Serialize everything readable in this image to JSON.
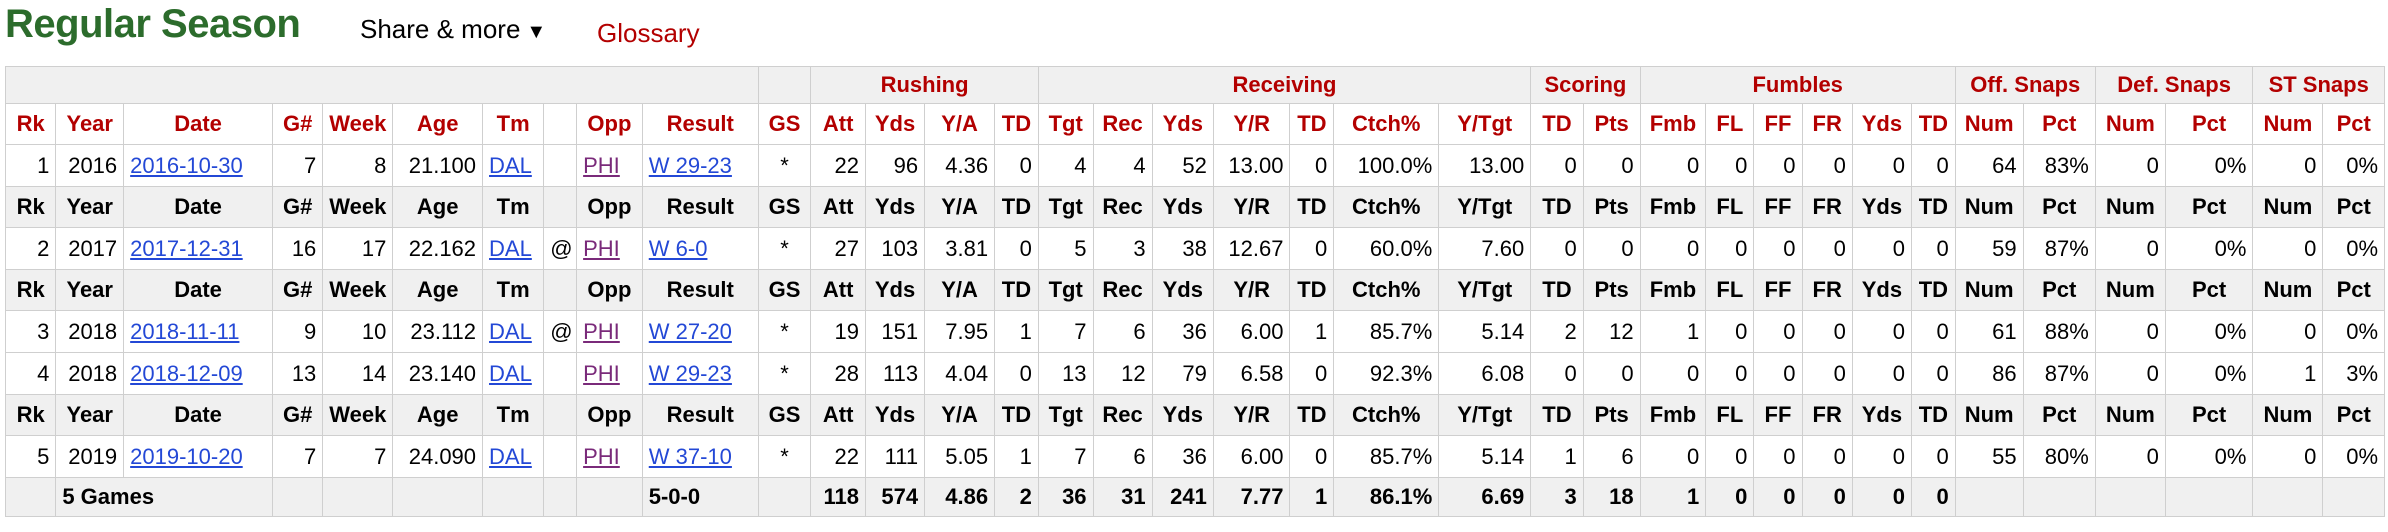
{
  "header": {
    "title": "Regular Season",
    "share_label": "Share & more",
    "share_caret": "▼",
    "glossary_label": "Glossary"
  },
  "groups": [
    "Rushing",
    "Receiving",
    "Scoring",
    "Fumbles",
    "Off. Snaps",
    "Def. Snaps",
    "ST Snaps"
  ],
  "columns": [
    "Rk",
    "Year",
    "Date",
    "G#",
    "Week",
    "Age",
    "Tm",
    "",
    "Opp",
    "Result",
    "GS",
    "Att",
    "Yds",
    "Y/A",
    "TD",
    "Tgt",
    "Rec",
    "Yds",
    "Y/R",
    "TD",
    "Ctch%",
    "Y/Tgt",
    "TD",
    "Pts",
    "Fmb",
    "FL",
    "FF",
    "FR",
    "Yds",
    "TD",
    "Num",
    "Pct",
    "Num",
    "Pct",
    "Num",
    "Pct"
  ],
  "repeat_columns": [
    "Rk",
    "Year",
    "Date",
    "G#",
    "Week",
    "Age",
    "Tm",
    "",
    "Opp",
    "Result",
    "GS",
    "Att",
    "Yds",
    "Y/A",
    "TD",
    "Tgt",
    "Rec",
    "Yds",
    "Y/R",
    "TD",
    "Ctch%",
    "Y/Tgt",
    "TD",
    "Pts",
    "Fmb",
    "FL",
    "FF",
    "FR",
    "Yds",
    "TD",
    "Num",
    "Pct",
    "Num",
    "Pct",
    "Num",
    "Pct"
  ],
  "rows": [
    {
      "type": "data",
      "cells": [
        "1",
        "2016",
        "2016-10-30",
        "7",
        "8",
        "21.100",
        "DAL",
        "",
        "PHI",
        "W 29-23",
        "*",
        "22",
        "96",
        "4.36",
        "0",
        "4",
        "4",
        "52",
        "13.00",
        "0",
        "100.0%",
        "13.00",
        "0",
        "0",
        "0",
        "0",
        "0",
        "0",
        "0",
        "0",
        "64",
        "83%",
        "0",
        "0%",
        "0",
        "0%"
      ]
    },
    {
      "type": "repeat"
    },
    {
      "type": "data",
      "cells": [
        "2",
        "2017",
        "2017-12-31",
        "16",
        "17",
        "22.162",
        "DAL",
        "@",
        "PHI",
        "W 6-0",
        "*",
        "27",
        "103",
        "3.81",
        "0",
        "5",
        "3",
        "38",
        "12.67",
        "0",
        "60.0%",
        "7.60",
        "0",
        "0",
        "0",
        "0",
        "0",
        "0",
        "0",
        "0",
        "59",
        "87%",
        "0",
        "0%",
        "0",
        "0%"
      ]
    },
    {
      "type": "repeat"
    },
    {
      "type": "data",
      "cells": [
        "3",
        "2018",
        "2018-11-11",
        "9",
        "10",
        "23.112",
        "DAL",
        "@",
        "PHI",
        "W 27-20",
        "*",
        "19",
        "151",
        "7.95",
        "1",
        "7",
        "6",
        "36",
        "6.00",
        "1",
        "85.7%",
        "5.14",
        "2",
        "12",
        "1",
        "0",
        "0",
        "0",
        "0",
        "0",
        "61",
        "88%",
        "0",
        "0%",
        "0",
        "0%"
      ]
    },
    {
      "type": "data",
      "cells": [
        "4",
        "2018",
        "2018-12-09",
        "13",
        "14",
        "23.140",
        "DAL",
        "",
        "PHI",
        "W 29-23",
        "*",
        "28",
        "113",
        "4.04",
        "0",
        "13",
        "12",
        "79",
        "6.58",
        "0",
        "92.3%",
        "6.08",
        "0",
        "0",
        "0",
        "0",
        "0",
        "0",
        "0",
        "0",
        "86",
        "87%",
        "0",
        "0%",
        "1",
        "3%"
      ]
    },
    {
      "type": "repeat"
    },
    {
      "type": "data",
      "cells": [
        "5",
        "2019",
        "2019-10-20",
        "7",
        "7",
        "24.090",
        "DAL",
        "",
        "PHI",
        "W 37-10",
        "*",
        "22",
        "111",
        "5.05",
        "1",
        "7",
        "6",
        "36",
        "6.00",
        "0",
        "85.7%",
        "5.14",
        "1",
        "6",
        "0",
        "0",
        "0",
        "0",
        "0",
        "0",
        "55",
        "80%",
        "0",
        "0%",
        "0",
        "0%"
      ]
    }
  ],
  "total": {
    "label": "5 Games",
    "result": "5-0-0",
    "cells": [
      "118",
      "574",
      "4.86",
      "2",
      "36",
      "31",
      "241",
      "7.77",
      "1",
      "86.1%",
      "6.69",
      "3",
      "18",
      "1",
      "0",
      "0",
      "0",
      "0",
      "0"
    ]
  }
}
